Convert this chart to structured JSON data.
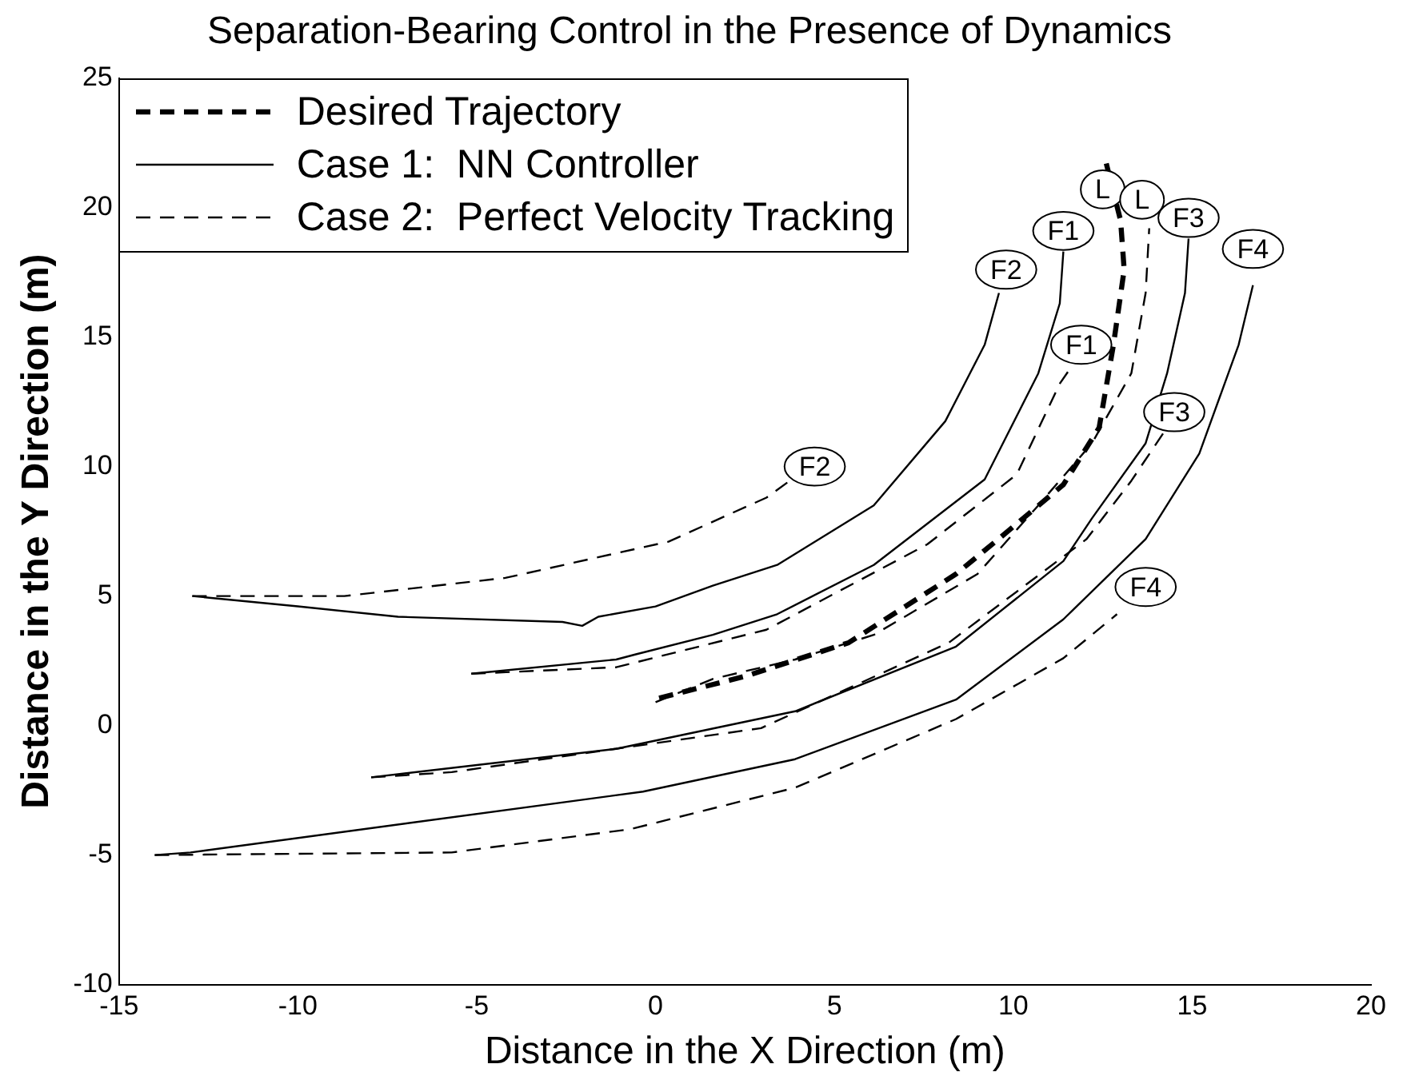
{
  "chart_data": {
    "type": "line",
    "title": "Separation-Bearing Control in the Presence of Dynamics",
    "xlabel": "Distance in the X Direction (m)",
    "ylabel": "Distance in the Y Direction (m)",
    "xlim": [
      -15,
      20
    ],
    "ylim": [
      -10,
      25
    ],
    "xticks": [
      -15,
      -10,
      -5,
      0,
      5,
      10,
      15,
      20
    ],
    "yticks": [
      -10,
      -5,
      0,
      5,
      10,
      15,
      20,
      25
    ],
    "grid": false,
    "legend": "top left",
    "marker": "none",
    "series": [
      {
        "name": "Desired Trajectory",
        "color": "#000000",
        "line_style": "dashed",
        "x": [
          0.1,
          2.5,
          5.4,
          8.4,
          9.5,
          11.4,
          12.4,
          12.8,
          13.1,
          13.0,
          12.6
        ],
        "values": [
          1.06,
          1.9,
          3.2,
          5.85,
          7.1,
          9.3,
          11.5,
          14.7,
          17.6,
          19.5,
          21.7
        ]
      },
      {
        "name": "Case 1:  NN Controller",
        "color": "#000000",
        "line_style": "solid",
        "x": [
          -12.95,
          -10,
          -7.2,
          -2.6,
          -2.05,
          -1.6,
          0,
          1.6,
          3.4,
          6.1,
          8.1,
          9.2,
          9.6
        ],
        "values": [
          5.0,
          4.6,
          4.2,
          4.0,
          3.85,
          4.2,
          4.6,
          5.4,
          6.2,
          8.5,
          11.75,
          14.7,
          16.7
        ]
      },
      {
        "name": "Case 2:  Perfect Velocity Tracking",
        "color": "#000000",
        "line_style": "dashed",
        "x": [
          -12.95,
          -8.7,
          -4.2,
          0.36,
          3.1,
          3.7
        ],
        "values": [
          5.0,
          5.0,
          5.7,
          7.1,
          8.8,
          9.4
        ]
      },
      {
        "color": "#000000",
        "line_style": "solid",
        "x": [
          -5.15,
          -1.1,
          -0.55,
          1.6,
          3.4,
          6.1,
          9.2,
          10.7,
          11.3,
          11.4
        ],
        "values": [
          2.0,
          2.55,
          2.75,
          3.5,
          4.3,
          6.2,
          9.5,
          13.6,
          16.3,
          18.3
        ]
      },
      {
        "color": "#000000",
        "line_style": "dashed",
        "x": [
          -5.15,
          -1.1,
          3.1,
          7.6,
          10.1,
          11.3,
          11.6
        ],
        "values": [
          2.0,
          2.25,
          3.7,
          7.0,
          9.7,
          13.2,
          13.8
        ]
      },
      {
        "color": "#000000",
        "line_style": "solid",
        "x": [
          -7.95,
          -1.1,
          3.9,
          8.4,
          11.4,
          12.2,
          13.7,
          14.3,
          14.8,
          14.9
        ],
        "values": [
          -2.0,
          -0.9,
          0.55,
          3.05,
          6.35,
          8.0,
          10.9,
          13.6,
          16.7,
          18.8
        ]
      },
      {
        "color": "#000000",
        "line_style": "dashed",
        "x": [
          -7.95,
          -5.7,
          2.95,
          8.2,
          12.05,
          13.3,
          14.2
        ],
        "values": [
          -2.0,
          -1.8,
          -0.1,
          3.2,
          7.2,
          9.45,
          11.3
        ]
      },
      {
        "color": "#000000",
        "line_style": "solid",
        "x": [
          -14,
          -13,
          -0.35,
          3.9,
          8.4,
          11.4,
          13.7,
          15.2,
          16.3,
          16.7
        ],
        "values": [
          -5.0,
          -4.9,
          -2.55,
          -1.3,
          1.0,
          4.1,
          7.2,
          10.5,
          14.7,
          17.0
        ]
      },
      {
        "color": "#000000",
        "line_style": "dashed",
        "x": [
          -14,
          -5.7,
          -0.7,
          3.9,
          8.4,
          11.4,
          12.9
        ],
        "values": [
          -5.0,
          -4.9,
          -4.0,
          -2.4,
          0.25,
          2.6,
          4.3
        ]
      },
      {
        "color": "#000000",
        "line_style": "dashed",
        "x": [
          0,
          1.6,
          3.9,
          6.1,
          9.0,
          10.7,
          12.2,
          13.3,
          13.7,
          13.8
        ],
        "values": [
          0.9,
          1.8,
          2.55,
          3.5,
          5.85,
          8.5,
          10.9,
          13.6,
          16.7,
          19.2
        ]
      }
    ],
    "annotations": [
      {
        "text": "L",
        "x": 12.5,
        "y": 20.7
      },
      {
        "text": "L",
        "x": 13.6,
        "y": 20.3
      },
      {
        "text": "F1",
        "x": 11.4,
        "y": 19.1
      },
      {
        "text": "F1",
        "x": 11.9,
        "y": 14.7
      },
      {
        "text": "F2",
        "x": 9.8,
        "y": 17.6
      },
      {
        "text": "F2",
        "x": 4.45,
        "y": 10.0
      },
      {
        "text": "F3",
        "x": 14.9,
        "y": 19.6
      },
      {
        "text": "F3",
        "x": 14.5,
        "y": 12.1
      },
      {
        "text": "F4",
        "x": 16.7,
        "y": 18.4
      },
      {
        "text": "F4",
        "x": 13.7,
        "y": 5.35
      }
    ]
  }
}
